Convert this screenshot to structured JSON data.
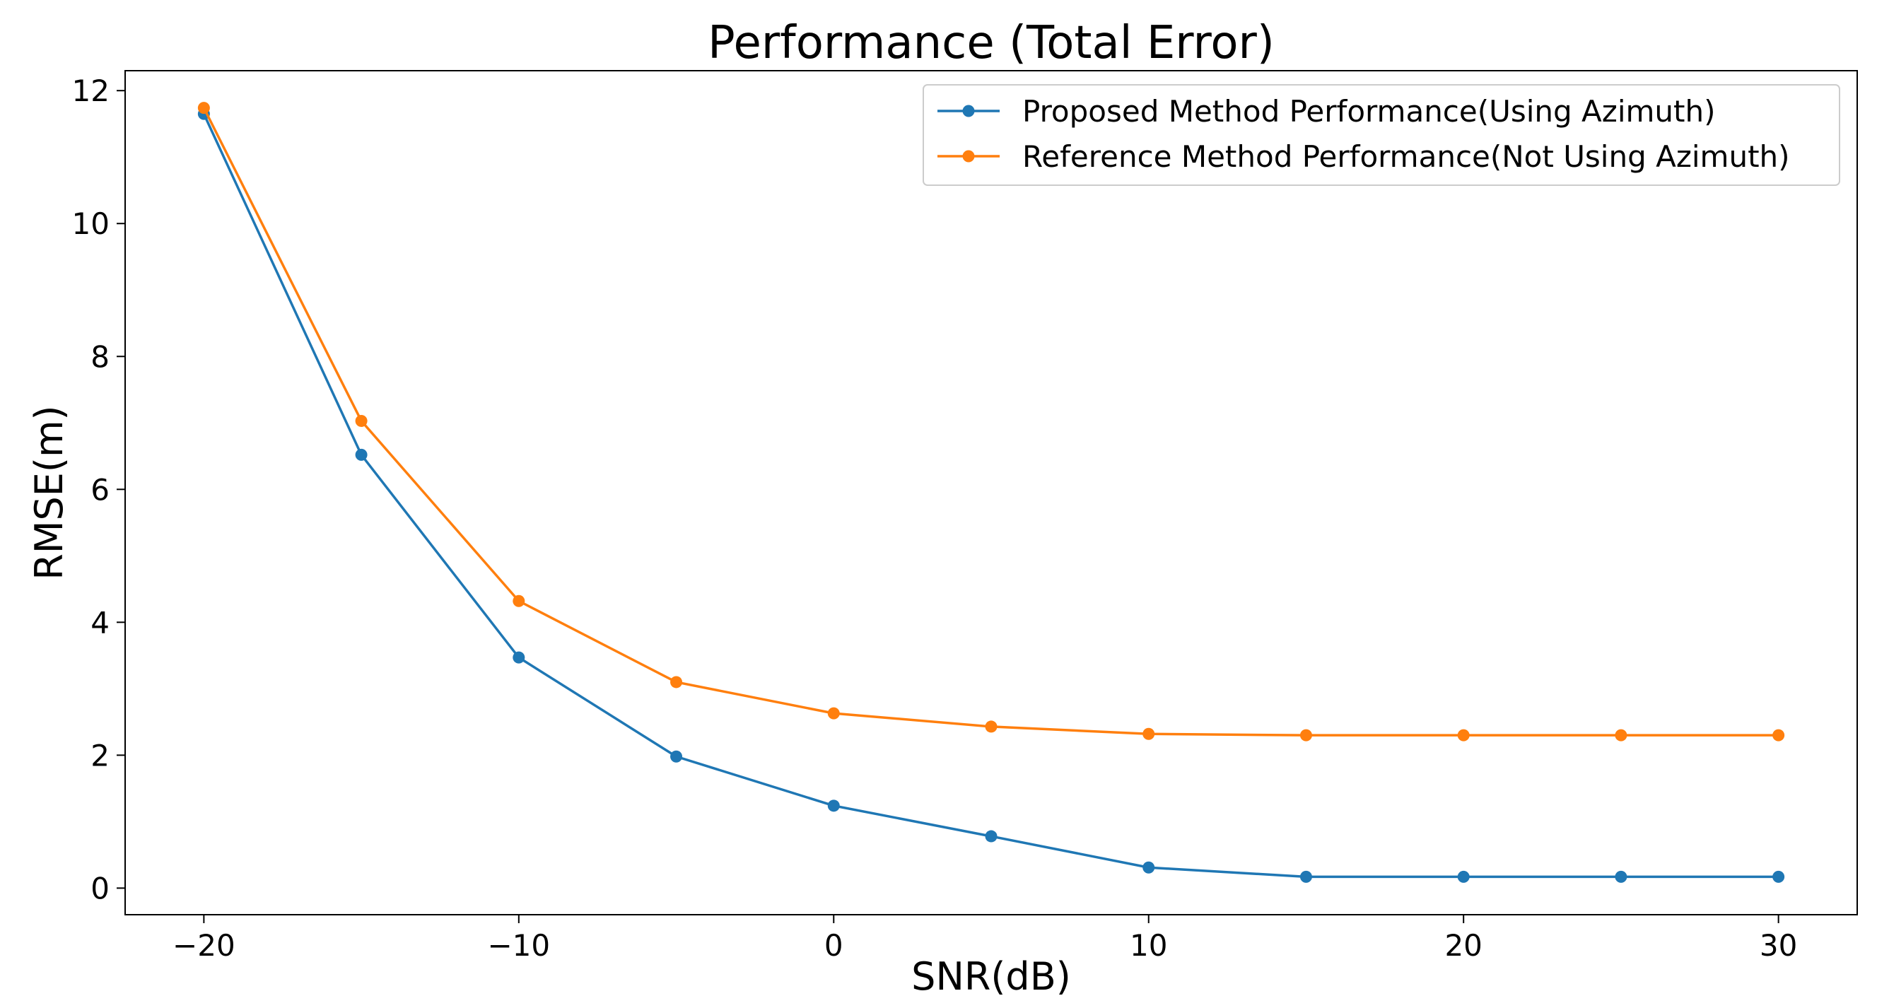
{
  "chart_data": {
    "type": "line",
    "title": "Performance (Total Error)",
    "xlabel": "SNR(dB)",
    "ylabel": "RMSE(m)",
    "x": [
      -20,
      -15,
      -10,
      -5,
      0,
      5,
      10,
      15,
      20,
      25,
      30
    ],
    "xlim": [
      -22.5,
      32.5
    ],
    "ylim": [
      -0.4,
      12.3
    ],
    "xticks": [
      -20,
      -10,
      0,
      10,
      20,
      30
    ],
    "xtick_labels": [
      "−20",
      "−10",
      "0",
      "10",
      "20",
      "30"
    ],
    "yticks": [
      0,
      2,
      4,
      6,
      8,
      10,
      12
    ],
    "ytick_labels": [
      "0",
      "2",
      "4",
      "6",
      "8",
      "10",
      "12"
    ],
    "grid": false,
    "legend_position": "top-right",
    "series": [
      {
        "name": "Proposed Method Performance(Using Azimuth)",
        "color": "#1f77b4",
        "marker": "circle",
        "values": [
          11.65,
          6.52,
          3.47,
          1.98,
          1.24,
          0.78,
          0.31,
          0.17,
          0.17,
          0.17,
          0.17
        ]
      },
      {
        "name": "Reference Method Performance(Not Using Azimuth)",
        "color": "#ff7f0e",
        "marker": "circle",
        "values": [
          11.74,
          7.03,
          4.32,
          3.1,
          2.63,
          2.43,
          2.32,
          2.3,
          2.3,
          2.3,
          2.3
        ]
      }
    ]
  }
}
